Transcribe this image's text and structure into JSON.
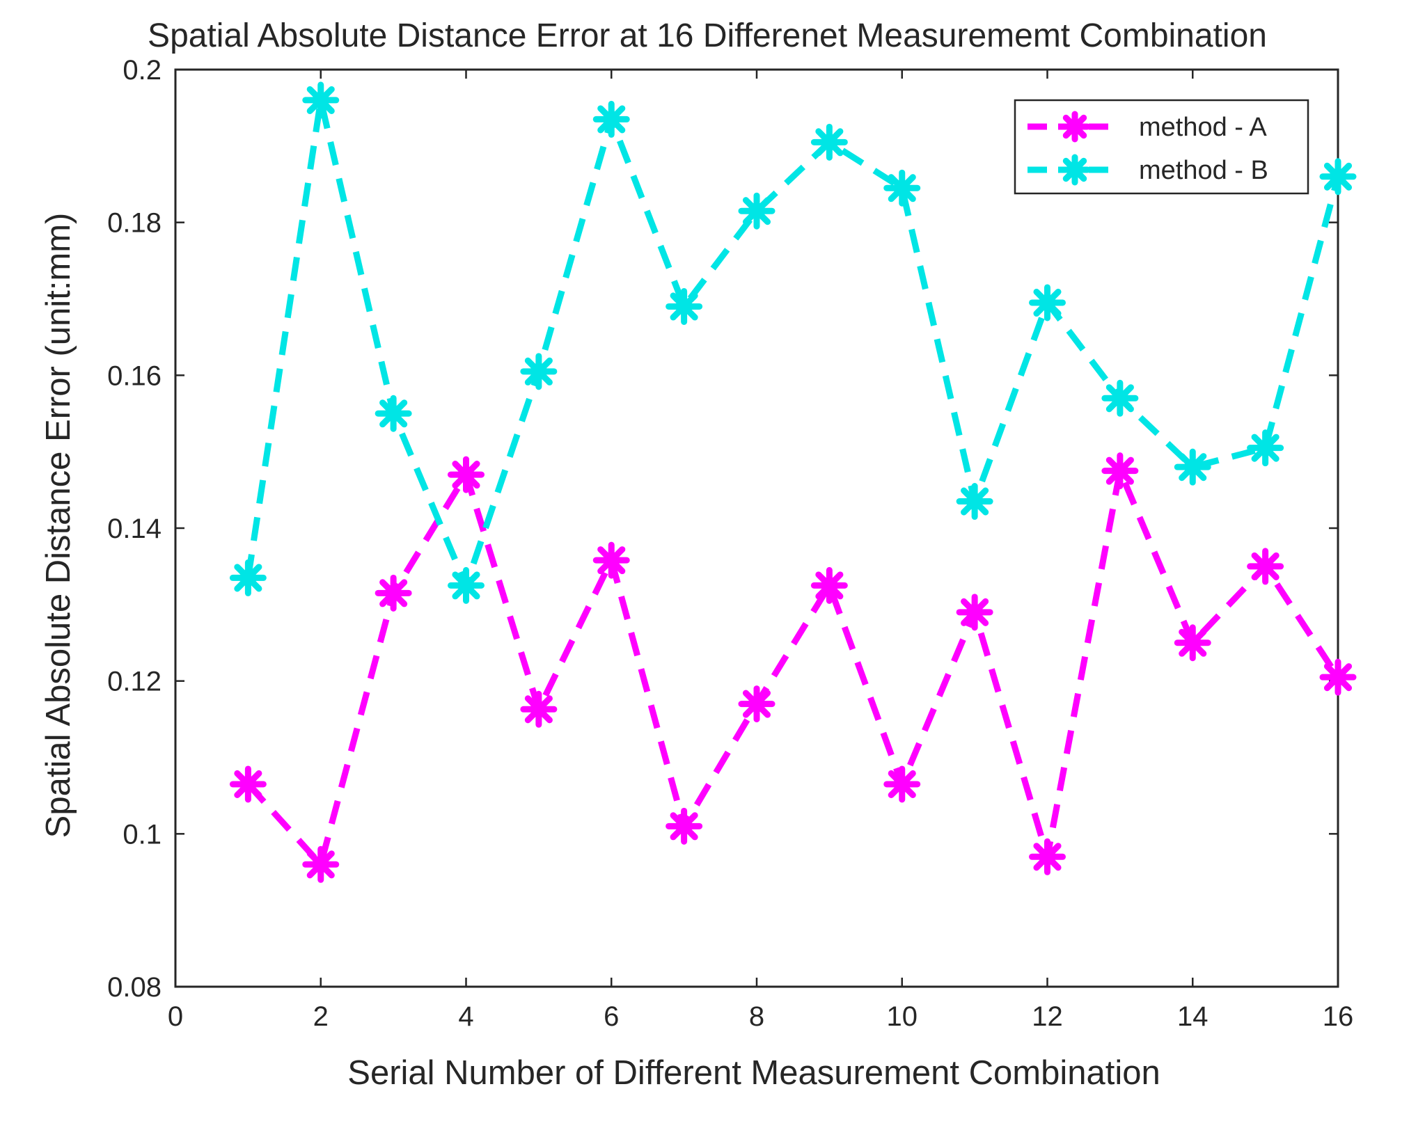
{
  "chart_data": {
    "type": "line",
    "title": "Spatial Absolute Distance Error at 16 Differenet Measurememt Combination",
    "xlabel": "Serial Number of Different Measurement Combination",
    "ylabel": "Spatial Absolute Distance Error (unit:mm)",
    "xlim": [
      0,
      16
    ],
    "ylim": [
      0.08,
      0.2
    ],
    "x_ticks": [
      0,
      2,
      4,
      6,
      8,
      10,
      12,
      14,
      16
    ],
    "y_ticks": [
      0.08,
      0.1,
      0.12,
      0.14,
      0.16,
      0.18,
      0.2
    ],
    "x_tick_labels": [
      "0",
      "2",
      "4",
      "6",
      "8",
      "10",
      "12",
      "14",
      "16"
    ],
    "y_tick_labels": [
      "0.08",
      "0.1",
      "0.12",
      "0.14",
      "0.16",
      "0.18",
      "0.2"
    ],
    "grid": false,
    "legend_position": "top-right",
    "line_style": "dashed",
    "marker": "asterisk",
    "x": [
      1,
      2,
      3,
      4,
      5,
      6,
      7,
      8,
      9,
      10,
      11,
      12,
      13,
      14,
      15,
      16
    ],
    "series": [
      {
        "name": "method - A",
        "color": "#ff00ff",
        "values": [
          0.1065,
          0.096,
          0.1315,
          0.147,
          0.1163,
          0.1358,
          0.101,
          0.117,
          0.1325,
          0.1065,
          0.129,
          0.097,
          0.1475,
          0.125,
          0.135,
          0.1205
        ]
      },
      {
        "name": "method - B",
        "color": "#00e5e5",
        "values": [
          0.1335,
          0.196,
          0.155,
          0.1325,
          0.1605,
          0.1935,
          0.169,
          0.1815,
          0.1905,
          0.1845,
          0.1435,
          0.1695,
          0.157,
          0.148,
          0.1505,
          0.186
        ]
      }
    ]
  }
}
